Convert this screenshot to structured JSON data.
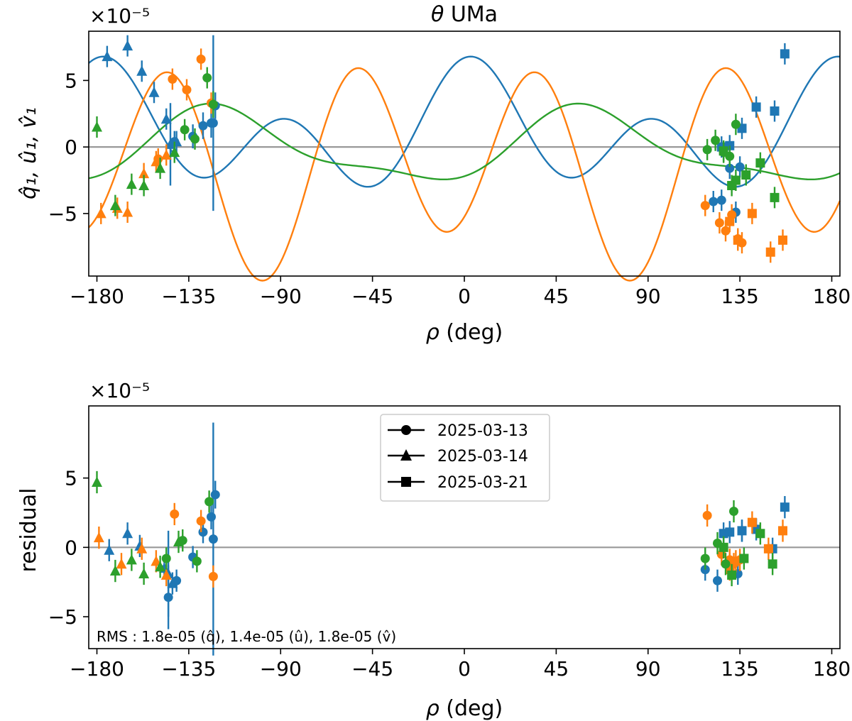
{
  "figure": {
    "domain": "Chart"
  },
  "colors": {
    "q": "#1f77b4",
    "u": "#ff7f0e",
    "v": "#2ca02c",
    "zero_line": "#999999",
    "axes": "#000000"
  },
  "chart_data": [
    {
      "type": "scatter",
      "panel": "top",
      "title_prefix": "θ",
      "title_suffix": " UMa",
      "xlabel_symbol": "ρ",
      "xlabel_unit": " (deg)",
      "ylabel": "q̂₁, û₁, v̂₁",
      "offset_text": "×10⁻⁵",
      "xlim": [
        -184,
        184
      ],
      "ylim": [
        -9.7,
        8.7
      ],
      "xticks": [
        -180,
        -135,
        -90,
        -45,
        0,
        45,
        90,
        135,
        180
      ],
      "xtick_labels": [
        "−180",
        "−135",
        "−90",
        "−45",
        "0",
        "45",
        "90",
        "135",
        "180"
      ],
      "yticks": [
        -5,
        0,
        5
      ],
      "ytick_labels": [
        "−5",
        "0",
        "5"
      ],
      "horizontal_line_y": 0,
      "grid": false,
      "models": [
        {
          "parameter": "q",
          "mean": 1.0,
          "cos2": 2.3,
          "sin2": 0.55,
          "cos4": 3.4,
          "sin4": 0.6
        },
        {
          "parameter": "u",
          "mean": -1.25,
          "cos2": 1.7,
          "sin2": -0.7,
          "cos4": -5.7,
          "sin4": 4.0
        },
        {
          "parameter": "v",
          "mean": -0.1,
          "cos2": -1.35,
          "sin2": 2.2,
          "cos4": -0.75,
          "sin4": -0.4
        }
      ],
      "series": [
        {
          "parameter": "q",
          "date": "2025-03-13",
          "marker": "circle",
          "points": [
            [
              -142,
              0.4,
              0.8
            ],
            [
              -133,
              0.8,
              0.9
            ],
            [
              -128,
              1.6,
              1.0
            ],
            [
              -124,
              1.8,
              1.1
            ],
            [
              -122,
              3.1,
              1.0
            ],
            [
              -123,
              1.8,
              6.6
            ],
            [
              122,
              -4.1,
              0.8
            ],
            [
              126,
              -4.0,
              0.8
            ],
            [
              130,
              -1.6,
              0.8
            ],
            [
              133,
              -4.9,
              0.8
            ],
            [
              135,
              -1.5,
              0.8
            ]
          ]
        },
        {
          "parameter": "q",
          "date": "2025-03-14",
          "marker": "triangle",
          "points": [
            [
              -175,
              6.8,
              0.8
            ],
            [
              -165,
              7.6,
              0.8
            ],
            [
              -158,
              5.7,
              0.8
            ],
            [
              -152,
              4.1,
              0.8
            ],
            [
              -146,
              2.1,
              0.8
            ],
            [
              -141,
              0.4,
              0.8
            ],
            [
              -144,
              0.2,
              3.1
            ]
          ]
        },
        {
          "parameter": "q",
          "date": "2025-03-21",
          "marker": "square",
          "points": [
            [
              126,
              0.0,
              0.8
            ],
            [
              130,
              0.1,
              0.8
            ],
            [
              136,
              1.4,
              0.8
            ],
            [
              143,
              3.0,
              0.8
            ],
            [
              152,
              2.7,
              0.8
            ],
            [
              157,
              7.0,
              0.8
            ]
          ]
        },
        {
          "parameter": "u",
          "date": "2025-03-13",
          "marker": "circle",
          "points": [
            [
              -150,
              -0.9,
              0.8
            ],
            [
              -143,
              5.1,
              0.8
            ],
            [
              -136,
              4.3,
              0.8
            ],
            [
              -129,
              6.6,
              0.8
            ],
            [
              -124,
              3.3,
              0.8
            ],
            [
              118,
              -4.4,
              0.8
            ],
            [
              125,
              -5.7,
              0.8
            ],
            [
              128,
              -6.3,
              0.8
            ],
            [
              131,
              -5.1,
              0.8
            ],
            [
              134,
              -6.9,
              0.8
            ],
            [
              136,
              -7.2,
              0.8
            ]
          ]
        },
        {
          "parameter": "u",
          "date": "2025-03-14",
          "marker": "triangle",
          "points": [
            [
              -178,
              -5.0,
              0.8
            ],
            [
              -170,
              -4.6,
              0.8
            ],
            [
              -165,
              -4.9,
              0.8
            ],
            [
              -157,
              -2.0,
              0.8
            ],
            [
              -151,
              -1.1,
              0.8
            ],
            [
              -146,
              -0.6,
              0.8
            ]
          ]
        },
        {
          "parameter": "u",
          "date": "2025-03-21",
          "marker": "square",
          "points": [
            [
              130,
              -5.6,
              0.8
            ],
            [
              134,
              -7.0,
              0.8
            ],
            [
              141,
              -5.0,
              0.8
            ],
            [
              150,
              -7.9,
              0.8
            ],
            [
              156,
              -7.0,
              0.8
            ]
          ]
        },
        {
          "parameter": "v",
          "date": "2025-03-13",
          "marker": "circle",
          "points": [
            [
              -137,
              1.3,
              0.8
            ],
            [
              -132,
              0.6,
              0.8
            ],
            [
              -126,
              5.2,
              0.8
            ],
            [
              -123,
              3.2,
              1.0
            ],
            [
              119,
              -0.2,
              0.8
            ],
            [
              123,
              0.5,
              0.8
            ],
            [
              127,
              -0.4,
              0.8
            ],
            [
              130,
              -0.7,
              0.8
            ],
            [
              133,
              1.7,
              0.8
            ]
          ]
        },
        {
          "parameter": "v",
          "date": "2025-03-14",
          "marker": "triangle",
          "points": [
            [
              -180,
              1.5,
              0.8
            ],
            [
              -171,
              -4.4,
              0.8
            ],
            [
              -163,
              -2.8,
              0.8
            ],
            [
              -157,
              -2.9,
              0.8
            ],
            [
              -149,
              -1.6,
              0.8
            ],
            [
              -142,
              -0.4,
              0.8
            ]
          ]
        },
        {
          "parameter": "v",
          "date": "2025-03-21",
          "marker": "square",
          "points": [
            [
              127,
              -0.3,
              0.8
            ],
            [
              131,
              -2.9,
              0.8
            ],
            [
              133,
              -2.5,
              0.8
            ],
            [
              138,
              -2.1,
              0.8
            ],
            [
              145,
              -1.2,
              0.8
            ],
            [
              152,
              -3.8,
              0.8
            ]
          ]
        }
      ]
    },
    {
      "type": "scatter",
      "panel": "bottom",
      "xlabel_symbol": "ρ",
      "xlabel_unit": " (deg)",
      "ylabel": "residual",
      "offset_text": "×10⁻⁵",
      "xlim": [
        -184,
        184
      ],
      "ylim": [
        -7.3,
        10.2
      ],
      "xticks": [
        -180,
        -135,
        -90,
        -45,
        0,
        45,
        90,
        135,
        180
      ],
      "xtick_labels": [
        "−180",
        "−135",
        "−90",
        "−45",
        "0",
        "45",
        "90",
        "135",
        "180"
      ],
      "yticks": [
        -5,
        0,
        5
      ],
      "ytick_labels": [
        "−5",
        "0",
        "5"
      ],
      "horizontal_line_y": 0,
      "grid": false,
      "legend_position": "upper-center",
      "legend": [
        {
          "label": "2025-03-13",
          "marker": "circle"
        },
        {
          "label": "2025-03-14",
          "marker": "triangle"
        },
        {
          "label": "2025-03-21",
          "marker": "square"
        }
      ],
      "annotation": "RMS : 1.8e-05 (q̂), 1.4e-05 (û), 1.8e-05 (v̂)",
      "series": [
        {
          "parameter": "q",
          "date": "2025-03-13",
          "marker": "circle",
          "points": [
            [
              -141,
              -2.4,
              0.8
            ],
            [
              -133,
              -0.7,
              0.8
            ],
            [
              -128,
              1.1,
              0.8
            ],
            [
              -124,
              2.2,
              0.9
            ],
            [
              -122,
              3.8,
              1.0
            ],
            [
              118,
              -1.6,
              0.8
            ],
            [
              124,
              -2.4,
              0.8
            ],
            [
              130,
              -1.2,
              0.8
            ],
            [
              134,
              -1.9,
              0.8
            ],
            [
              136,
              1.2,
              0.8
            ]
          ]
        },
        {
          "parameter": "q",
          "date": "2025-03-14",
          "marker": "triangle",
          "points": [
            [
              -174,
              -0.2,
              0.8
            ],
            [
              -165,
              1.0,
              0.8
            ],
            [
              -159,
              0.1,
              0.8
            ],
            [
              -147,
              -1.5,
              0.8
            ],
            [
              -143,
              -2.6,
              0.8
            ],
            [
              -145,
              -1.9,
              3.1
            ]
          ]
        },
        {
          "parameter": "q",
          "date": "2025-03-21",
          "marker": "square",
          "points": [
            [
              127,
              1.0,
              0.8
            ],
            [
              130,
              1.1,
              0.8
            ],
            [
              136,
              1.2,
              0.8
            ],
            [
              143,
              1.3,
              0.8
            ],
            [
              151,
              -0.1,
              0.8
            ],
            [
              157,
              2.9,
              0.8
            ]
          ]
        },
        {
          "parameter": "q",
          "date": "2025-03-13",
          "marker": "circle",
          "large_error": true,
          "points": [
            [
              -123,
              0.6,
              8.4
            ],
            [
              -145,
              -3.6,
              2.3
            ]
          ]
        },
        {
          "parameter": "u",
          "date": "2025-03-13",
          "marker": "circle",
          "points": [
            [
              -142,
              2.4,
              0.8
            ],
            [
              -129,
              1.9,
              0.8
            ],
            [
              -123,
              -2.1,
              0.8
            ],
            [
              119,
              2.3,
              0.8
            ],
            [
              126,
              -0.5,
              0.8
            ],
            [
              130,
              -0.9,
              0.8
            ],
            [
              132,
              -1.2,
              0.8
            ],
            [
              135,
              -0.9,
              0.8
            ]
          ]
        },
        {
          "parameter": "u",
          "date": "2025-03-14",
          "marker": "triangle",
          "points": [
            [
              -179,
              0.7,
              0.8
            ],
            [
              -168,
              -1.2,
              0.8
            ],
            [
              -158,
              -0.1,
              0.8
            ],
            [
              -151,
              -1.0,
              0.8
            ],
            [
              -146,
              -2.0,
              0.8
            ]
          ]
        },
        {
          "parameter": "u",
          "date": "2025-03-21",
          "marker": "square",
          "points": [
            [
              130,
              -1.6,
              0.8
            ],
            [
              133,
              -1.0,
              0.8
            ],
            [
              141,
              1.8,
              0.8
            ],
            [
              149,
              -0.1,
              0.8
            ],
            [
              156,
              1.2,
              0.8
            ]
          ]
        },
        {
          "parameter": "v",
          "date": "2025-03-13",
          "marker": "circle",
          "points": [
            [
              -146,
              -0.8,
              0.8
            ],
            [
              -138,
              0.5,
              0.8
            ],
            [
              -131,
              -1.0,
              0.8
            ],
            [
              -125,
              3.3,
              0.8
            ],
            [
              118,
              -0.8,
              0.8
            ],
            [
              124,
              0.3,
              0.8
            ],
            [
              128,
              -1.2,
              0.8
            ],
            [
              132,
              2.6,
              0.8
            ]
          ]
        },
        {
          "parameter": "v",
          "date": "2025-03-14",
          "marker": "triangle",
          "points": [
            [
              -180,
              4.7,
              0.8
            ],
            [
              -171,
              -1.7,
              0.8
            ],
            [
              -163,
              -0.9,
              0.8
            ],
            [
              -157,
              -1.9,
              0.8
            ],
            [
              -149,
              -1.4,
              0.8
            ],
            [
              -140,
              0.4,
              0.8
            ]
          ]
        },
        {
          "parameter": "v",
          "date": "2025-03-21",
          "marker": "square",
          "points": [
            [
              127,
              0.0,
              0.8
            ],
            [
              131,
              -2.0,
              0.8
            ],
            [
              137,
              -0.8,
              0.8
            ],
            [
              145,
              1.0,
              0.8
            ],
            [
              151,
              -1.2,
              0.8
            ]
          ]
        }
      ]
    }
  ]
}
